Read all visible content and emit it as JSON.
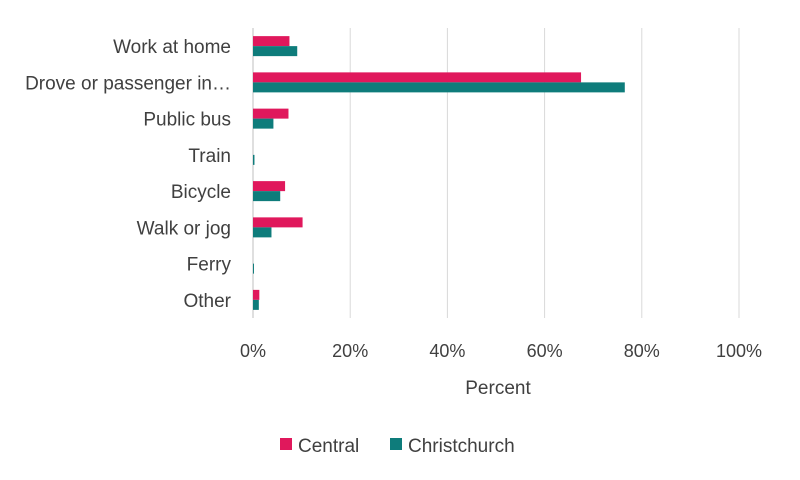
{
  "chart_data": {
    "type": "bar",
    "orientation": "horizontal",
    "categories": [
      "Work at home",
      "Drove or passenger in…",
      "Public bus",
      "Train",
      "Bicycle",
      "Walk or jog",
      "Ferry",
      "Other"
    ],
    "series": [
      {
        "name": "Central",
        "color": "#E0185C",
        "values": [
          7.5,
          67.5,
          7.3,
          0.0,
          6.6,
          10.2,
          0.0,
          1.3
        ]
      },
      {
        "name": "Christchurch",
        "color": "#0E7C7B",
        "values": [
          9.1,
          76.5,
          4.2,
          0.3,
          5.6,
          3.8,
          0.2,
          1.2
        ]
      }
    ],
    "xlabel": "Percent",
    "ylabel": "",
    "xlim": [
      0,
      100
    ],
    "xticks": [
      0,
      20,
      40,
      60,
      80,
      100
    ],
    "xtick_labels": [
      "0%",
      "20%",
      "40%",
      "60%",
      "80%",
      "100%"
    ],
    "grid": true,
    "legend_position": "bottom"
  }
}
